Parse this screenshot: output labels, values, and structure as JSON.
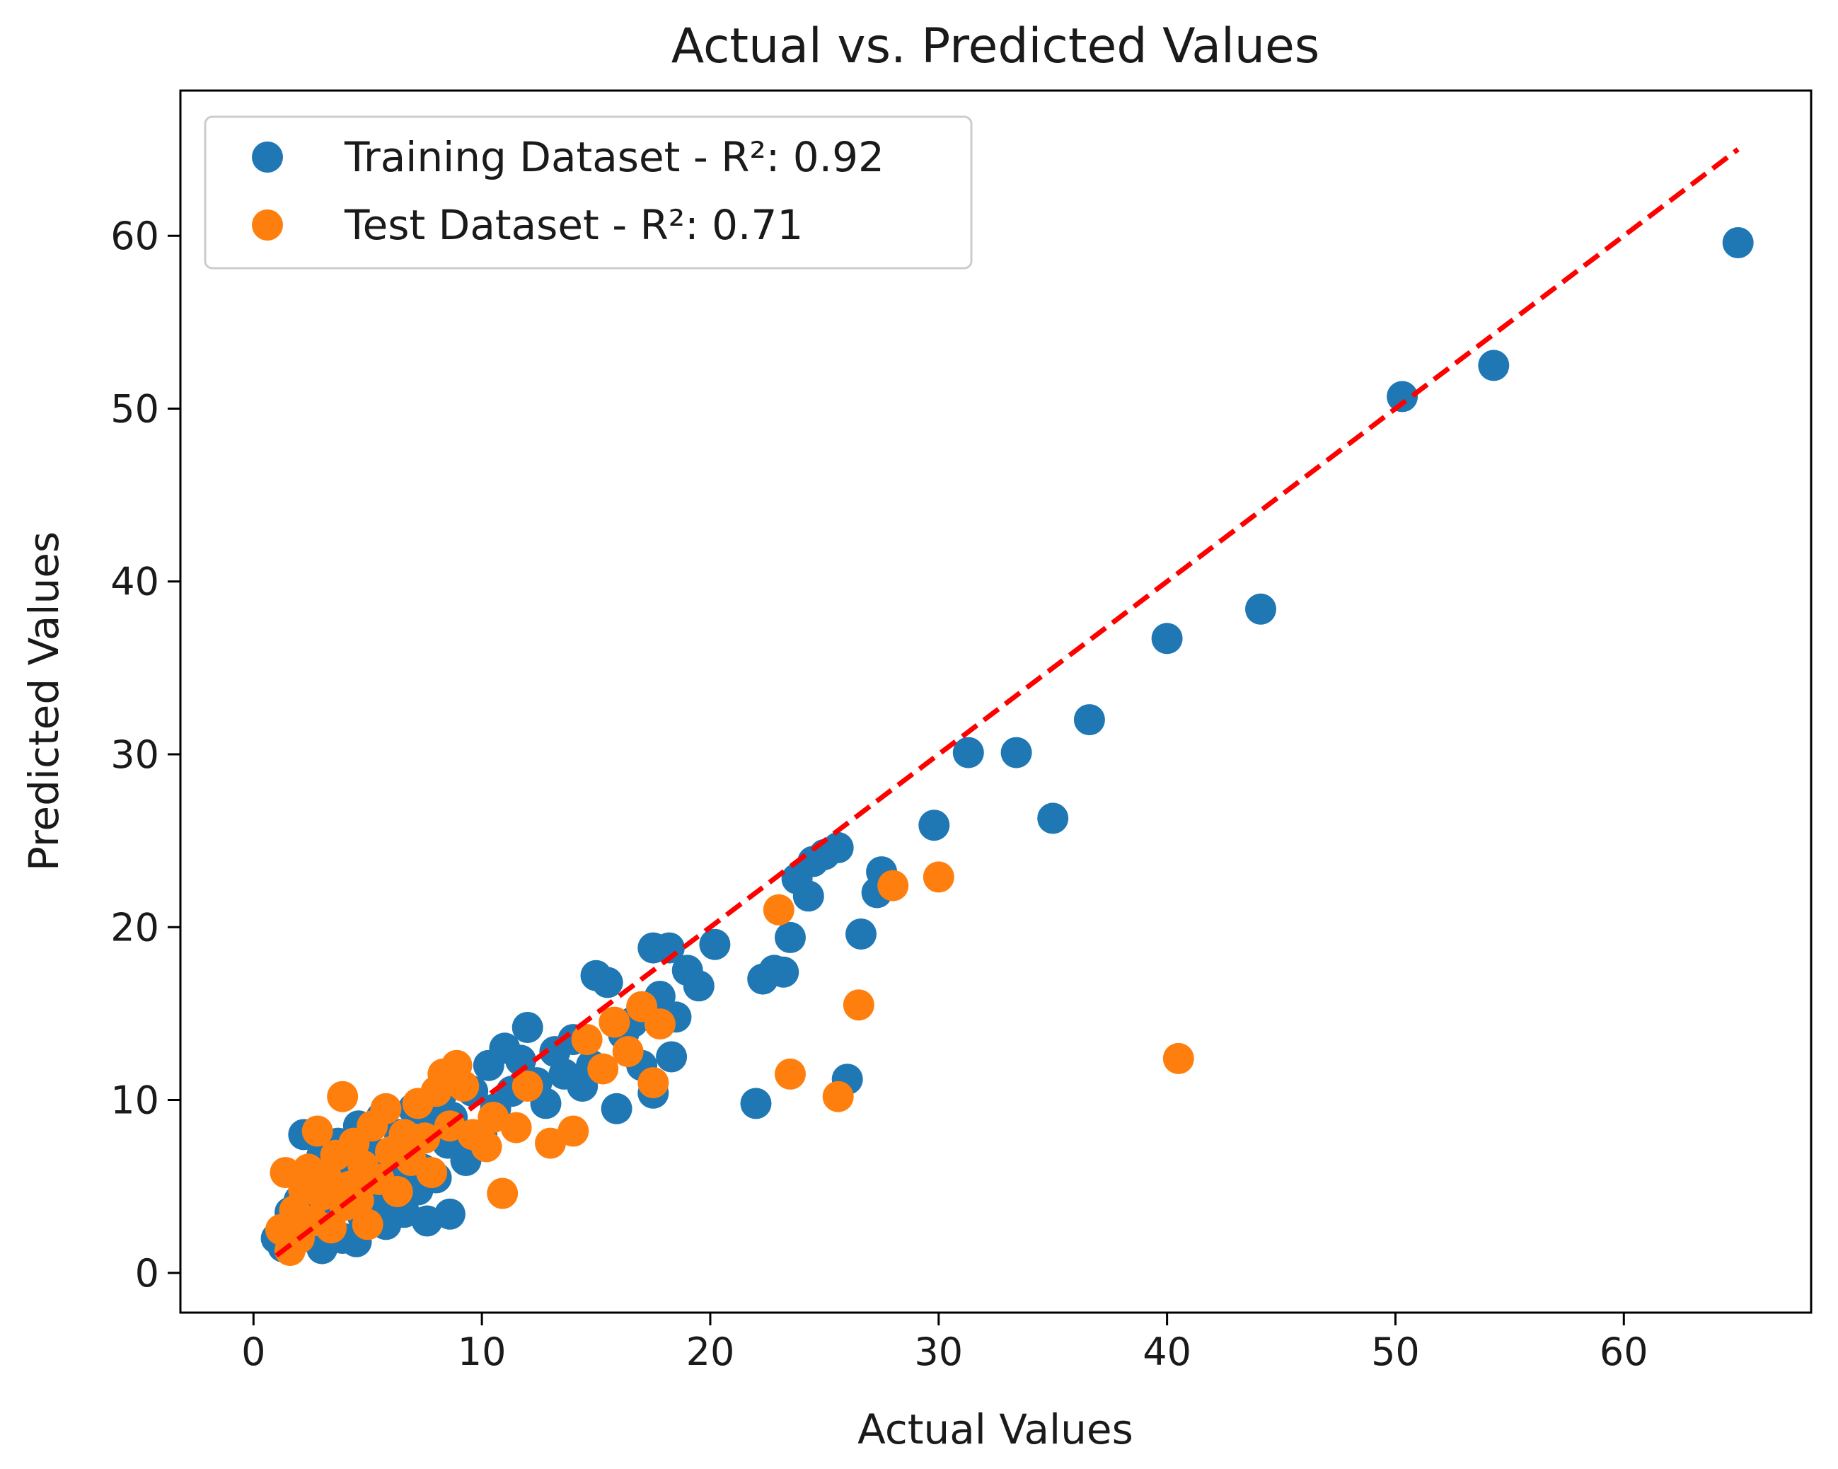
{
  "chart_data": {
    "type": "scatter",
    "title": "Actual vs. Predicted Values",
    "xlabel": "Actual Values",
    "ylabel": "Predicted Values",
    "xlim": [
      -3.2,
      68.2
    ],
    "ylim": [
      -2.3,
      68.4
    ],
    "xticks": [
      0,
      10,
      20,
      30,
      40,
      50,
      60
    ],
    "yticks": [
      0,
      10,
      20,
      30,
      40,
      50,
      60
    ],
    "grid": false,
    "legend_position": "top-left",
    "reference_line": {
      "name": "y = x",
      "style": "dashed",
      "color": "#ff0000",
      "from": [
        1,
        1
      ],
      "to": [
        65,
        65
      ]
    },
    "series": [
      {
        "name": "Training Dataset - R²: 0.92",
        "color": "#1f77b4",
        "points": [
          [
            1.0,
            2.0
          ],
          [
            1.3,
            1.5
          ],
          [
            1.6,
            3.5
          ],
          [
            1.8,
            2.4
          ],
          [
            2.0,
            4.2
          ],
          [
            2.2,
            8.0
          ],
          [
            2.4,
            3.0
          ],
          [
            2.6,
            5.5
          ],
          [
            2.8,
            2.2
          ],
          [
            3.0,
            1.4
          ],
          [
            3.0,
            6.8
          ],
          [
            3.3,
            3.8
          ],
          [
            3.5,
            5.0
          ],
          [
            3.7,
            7.5
          ],
          [
            3.9,
            2.0
          ],
          [
            4.1,
            4.5
          ],
          [
            4.3,
            6.2
          ],
          [
            4.5,
            1.8
          ],
          [
            4.6,
            8.5
          ],
          [
            4.8,
            3.2
          ],
          [
            5.0,
            5.8
          ],
          [
            5.2,
            7.0
          ],
          [
            5.4,
            4.0
          ],
          [
            5.6,
            9.0
          ],
          [
            5.8,
            2.8
          ],
          [
            6.0,
            6.5
          ],
          [
            6.2,
            5.2
          ],
          [
            6.4,
            8.0
          ],
          [
            6.6,
            3.5
          ],
          [
            6.8,
            7.2
          ],
          [
            7.0,
            9.5
          ],
          [
            7.2,
            4.8
          ],
          [
            7.4,
            6.0
          ],
          [
            7.6,
            3.0
          ],
          [
            7.8,
            8.8
          ],
          [
            8.0,
            5.5
          ],
          [
            8.2,
            10.2
          ],
          [
            8.5,
            7.5
          ],
          [
            8.7,
            9.0
          ],
          [
            8.6,
            3.4
          ],
          [
            9.0,
            11.0
          ],
          [
            9.3,
            6.5
          ],
          [
            9.6,
            10.5
          ],
          [
            10.0,
            8.0
          ],
          [
            10.3,
            12.0
          ],
          [
            10.6,
            9.5
          ],
          [
            11.0,
            13.0
          ],
          [
            11.3,
            10.5
          ],
          [
            11.7,
            12.3
          ],
          [
            12.0,
            14.2
          ],
          [
            12.4,
            11.0
          ],
          [
            12.8,
            9.8
          ],
          [
            13.2,
            12.8
          ],
          [
            13.6,
            11.5
          ],
          [
            14.0,
            13.5
          ],
          [
            14.4,
            10.8
          ],
          [
            14.8,
            12.0
          ],
          [
            15.0,
            17.2
          ],
          [
            15.5,
            16.8
          ],
          [
            15.9,
            9.5
          ],
          [
            16.2,
            13.8
          ],
          [
            16.6,
            14.5
          ],
          [
            17.0,
            12.0
          ],
          [
            17.5,
            18.8
          ],
          [
            17.5,
            10.4
          ],
          [
            17.8,
            16.0
          ],
          [
            18.2,
            18.8
          ],
          [
            18.5,
            14.8
          ],
          [
            18.3,
            12.5
          ],
          [
            19.0,
            17.5
          ],
          [
            19.5,
            16.6
          ],
          [
            20.2,
            19.0
          ],
          [
            22.0,
            9.8
          ],
          [
            22.3,
            17.0
          ],
          [
            22.8,
            17.5
          ],
          [
            23.2,
            17.4
          ],
          [
            23.5,
            19.4
          ],
          [
            23.8,
            22.8
          ],
          [
            24.3,
            21.8
          ],
          [
            24.5,
            23.8
          ],
          [
            25.0,
            24.2
          ],
          [
            25.6,
            24.6
          ],
          [
            26.0,
            11.2
          ],
          [
            26.6,
            19.6
          ],
          [
            27.3,
            22.0
          ],
          [
            27.5,
            23.2
          ],
          [
            29.8,
            25.9
          ],
          [
            31.3,
            30.1
          ],
          [
            33.4,
            30.1
          ],
          [
            35.0,
            26.3
          ],
          [
            36.6,
            32.0
          ],
          [
            40.0,
            36.7
          ],
          [
            44.1,
            38.4
          ],
          [
            50.3,
            50.7
          ],
          [
            54.3,
            52.5
          ],
          [
            65.0,
            59.6
          ]
        ]
      },
      {
        "name": "Test Dataset - R²: 0.71",
        "color": "#ff7f0e",
        "points": [
          [
            1.2,
            2.5
          ],
          [
            1.4,
            5.8
          ],
          [
            1.6,
            1.3
          ],
          [
            1.8,
            3.6
          ],
          [
            2.0,
            2.0
          ],
          [
            2.2,
            4.8
          ],
          [
            2.4,
            6.0
          ],
          [
            2.6,
            3.0
          ],
          [
            2.8,
            8.2
          ],
          [
            3.0,
            4.5
          ],
          [
            3.2,
            5.5
          ],
          [
            3.4,
            2.6
          ],
          [
            3.6,
            6.8
          ],
          [
            3.9,
            10.2
          ],
          [
            4.0,
            3.9
          ],
          [
            4.2,
            5.0
          ],
          [
            4.4,
            7.5
          ],
          [
            4.6,
            4.2
          ],
          [
            4.8,
            6.2
          ],
          [
            5.0,
            2.8
          ],
          [
            5.2,
            8.5
          ],
          [
            5.5,
            5.4
          ],
          [
            5.8,
            9.5
          ],
          [
            6.0,
            7.0
          ],
          [
            6.3,
            4.7
          ],
          [
            6.6,
            8.0
          ],
          [
            6.9,
            6.5
          ],
          [
            7.2,
            9.8
          ],
          [
            7.5,
            7.8
          ],
          [
            7.8,
            5.8
          ],
          [
            8.0,
            10.5
          ],
          [
            8.3,
            11.5
          ],
          [
            8.6,
            8.5
          ],
          [
            8.9,
            12.0
          ],
          [
            9.2,
            10.8
          ],
          [
            9.6,
            8.0
          ],
          [
            10.2,
            7.3
          ],
          [
            10.5,
            9.0
          ],
          [
            10.9,
            4.6
          ],
          [
            11.5,
            8.4
          ],
          [
            12.0,
            10.8
          ],
          [
            13.0,
            7.5
          ],
          [
            14.0,
            8.2
          ],
          [
            14.6,
            13.5
          ],
          [
            15.3,
            11.8
          ],
          [
            15.8,
            14.5
          ],
          [
            16.4,
            12.8
          ],
          [
            17.0,
            15.4
          ],
          [
            17.5,
            11.0
          ],
          [
            17.8,
            14.4
          ],
          [
            23.0,
            21.0
          ],
          [
            23.5,
            11.5
          ],
          [
            25.6,
            10.2
          ],
          [
            26.5,
            15.5
          ],
          [
            28.0,
            22.4
          ],
          [
            30.0,
            22.9
          ],
          [
            40.5,
            12.4
          ]
        ]
      }
    ]
  }
}
